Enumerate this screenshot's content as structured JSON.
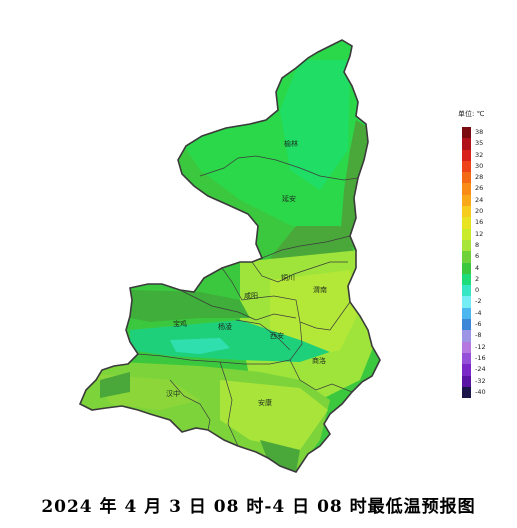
{
  "caption": "2024 年 4 月 3 日 08 时-4 日 08 时最低温预报图",
  "legend": {
    "title": "单位: ℃",
    "items": [
      {
        "label": "38",
        "color": "#7a0a10"
      },
      {
        "label": "35",
        "color": "#b01018"
      },
      {
        "label": "32",
        "color": "#d8201c"
      },
      {
        "label": "30",
        "color": "#ee4218"
      },
      {
        "label": "28",
        "color": "#f46a14"
      },
      {
        "label": "26",
        "color": "#f88c16"
      },
      {
        "label": "24",
        "color": "#f8a818"
      },
      {
        "label": "20",
        "color": "#f6cc1e"
      },
      {
        "label": "16",
        "color": "#e8e424"
      },
      {
        "label": "12",
        "color": "#c8ec2a"
      },
      {
        "label": "8",
        "color": "#a8e43a"
      },
      {
        "label": "6",
        "color": "#70d23a"
      },
      {
        "label": "4",
        "color": "#3cc83e"
      },
      {
        "label": "2",
        "color": "#1edc7a"
      },
      {
        "label": "0",
        "color": "#36e6c4"
      },
      {
        "label": "-2",
        "color": "#74eef4"
      },
      {
        "label": "-4",
        "color": "#4cb6ee"
      },
      {
        "label": "-6",
        "color": "#3c86d8"
      },
      {
        "label": "-8",
        "color": "#9c94e4"
      },
      {
        "label": "-12",
        "color": "#b478e0"
      },
      {
        "label": "-16",
        "color": "#9450d8"
      },
      {
        "label": "-24",
        "color": "#7a28c8"
      },
      {
        "label": "-32",
        "color": "#5a14a4"
      },
      {
        "label": "-40",
        "color": "#1a1448"
      }
    ]
  },
  "cities": [
    {
      "name": "榆林"
    },
    {
      "name": "延安"
    },
    {
      "name": "铜川"
    },
    {
      "name": "渭南"
    },
    {
      "name": "咸阳"
    },
    {
      "name": "宝鸡"
    },
    {
      "name": "杨凌"
    },
    {
      "name": "西安"
    },
    {
      "name": "商洛"
    },
    {
      "name": "汉中"
    },
    {
      "name": "安康"
    }
  ]
}
